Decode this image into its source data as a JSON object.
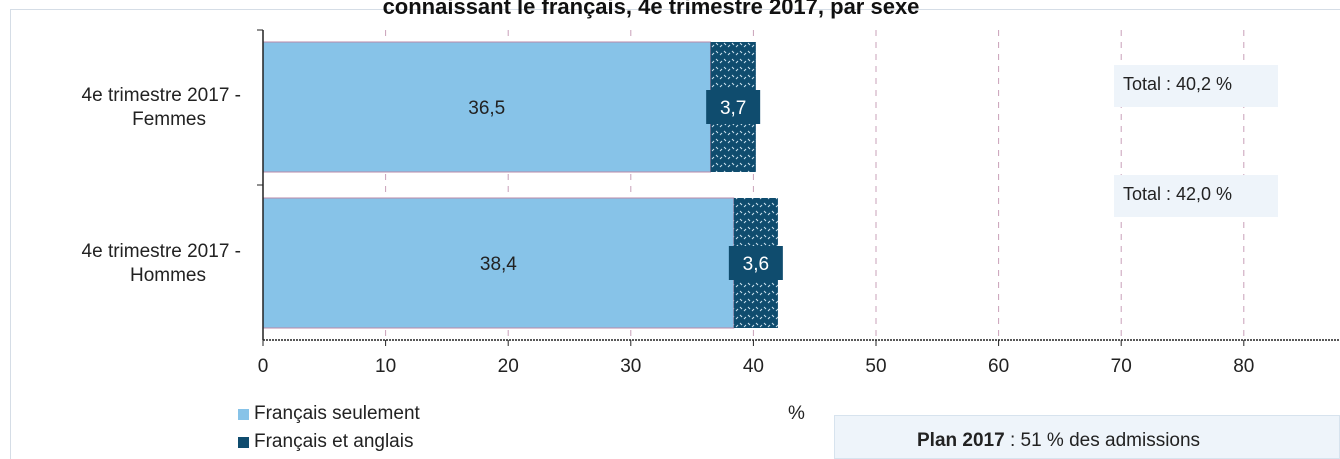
{
  "chart_data": {
    "type": "bar",
    "orientation": "horizontal",
    "stacked": true,
    "title": "connaissant le français, 4e trimestre 2017, par sexe",
    "categories": [
      "4e trimestre 2017 -\nFemmes",
      "4e trimestre 2017 -\nHommes"
    ],
    "series": [
      {
        "name": "Français seulement",
        "values": [
          36.5,
          38.4
        ],
        "color": "#87c3e8"
      },
      {
        "name": "Français et anglais",
        "values": [
          3.7,
          3.6
        ],
        "color": "#0f4c6e"
      }
    ],
    "totals": [
      "Total : 40,2 %",
      "Total : 42,0 %"
    ],
    "value_labels": [
      [
        "36,5",
        "38,4"
      ],
      [
        "3,7",
        "3,6"
      ]
    ],
    "xlim": [
      0,
      85
    ],
    "xticks": [
      0,
      10,
      20,
      30,
      40,
      50,
      60,
      70,
      80
    ],
    "xlabel": "%",
    "grid": true,
    "legend_position": "bottom-left"
  },
  "plan": {
    "label": "Plan 2017",
    "text": " :  51 % des admissions"
  },
  "colors": {
    "grid": "#c9a0b8",
    "axis": "#222222",
    "total_bg": "#eef4fa"
  }
}
